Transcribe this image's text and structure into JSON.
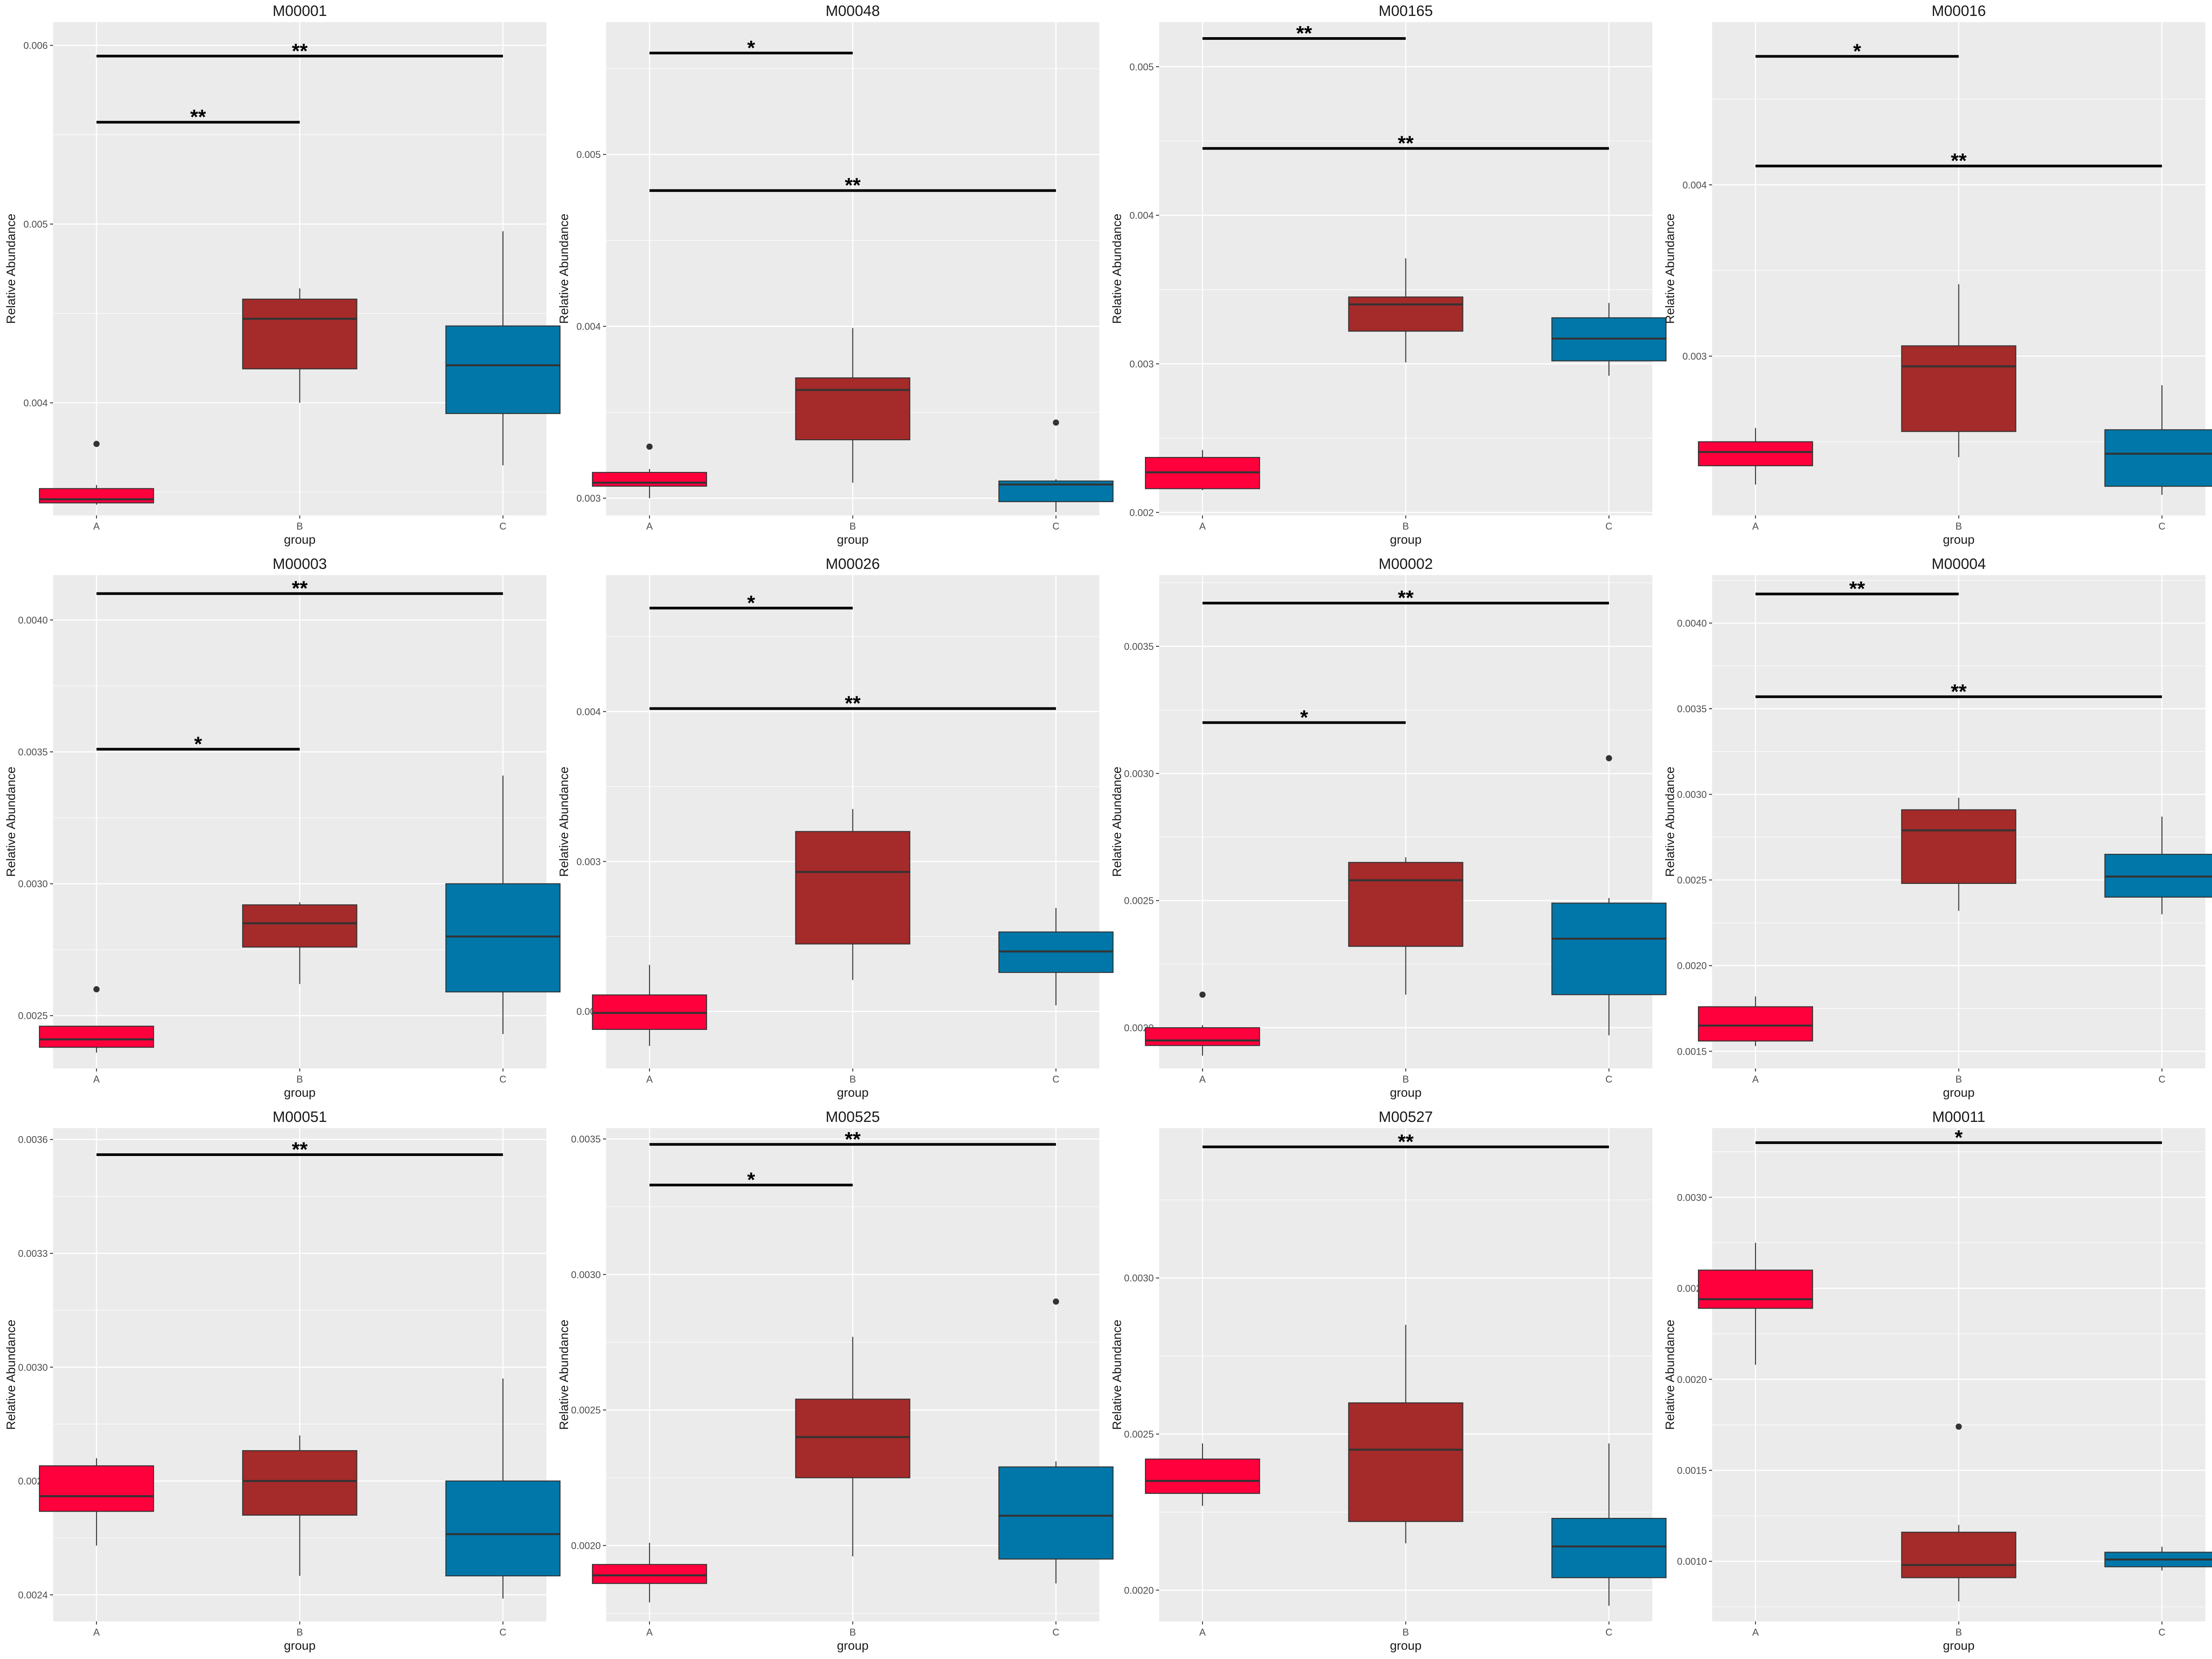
{
  "colors": {
    "A": "#ff003c",
    "B": "#a52a2a",
    "C": "#0077a8",
    "panel": "#ebebeb",
    "grid": "#ffffff",
    "outline": "#333333"
  },
  "chart_data": [
    {
      "type": "box",
      "title": "M00001",
      "xlabel": "group",
      "ylabel": "Relative Abundance",
      "categories": [
        "A",
        "B",
        "C"
      ],
      "ylim": [
        0.00337,
        0.00613
      ],
      "yticks": [
        "0.004",
        "0.005",
        "0.006"
      ],
      "boxes": [
        {
          "group": "A",
          "min": 0.00343,
          "q1": 0.00344,
          "median": 0.00346,
          "q3": 0.00352,
          "max": 0.00354,
          "outliers": [
            0.00377
          ]
        },
        {
          "group": "B",
          "min": 0.004,
          "q1": 0.00419,
          "median": 0.00447,
          "q3": 0.00458,
          "max": 0.00464,
          "outliers": []
        },
        {
          "group": "C",
          "min": 0.00365,
          "q1": 0.00394,
          "median": 0.00421,
          "q3": 0.00443,
          "max": 0.00496,
          "outliers": []
        }
      ],
      "significance": [
        {
          "from": "A",
          "to": "B",
          "y": 0.00557,
          "label": "**"
        },
        {
          "from": "A",
          "to": "C",
          "y": 0.00594,
          "label": "**"
        }
      ]
    },
    {
      "type": "box",
      "title": "M00048",
      "xlabel": "group",
      "ylabel": "Relative Abundance",
      "categories": [
        "A",
        "B",
        "C"
      ],
      "ylim": [
        0.0029,
        0.00577
      ],
      "yticks": [
        "0.003",
        "0.004",
        "0.005"
      ],
      "boxes": [
        {
          "group": "A",
          "min": 0.003,
          "q1": 0.00307,
          "median": 0.00309,
          "q3": 0.00315,
          "max": 0.00317,
          "outliers": [
            0.0033
          ]
        },
        {
          "group": "B",
          "min": 0.00309,
          "q1": 0.00334,
          "median": 0.00363,
          "q3": 0.0037,
          "max": 0.00399,
          "outliers": []
        },
        {
          "group": "C",
          "min": 0.00292,
          "q1": 0.00298,
          "median": 0.00308,
          "q3": 0.0031,
          "max": 0.00311,
          "outliers": [
            0.00344
          ]
        }
      ],
      "significance": [
        {
          "from": "A",
          "to": "B",
          "y": 0.00559,
          "label": "*"
        },
        {
          "from": "A",
          "to": "C",
          "y": 0.00479,
          "label": "**"
        }
      ]
    },
    {
      "type": "box",
      "title": "M00165",
      "xlabel": "group",
      "ylabel": "Relative Abundance",
      "categories": [
        "A",
        "B",
        "C"
      ],
      "ylim": [
        0.00198,
        0.0053
      ],
      "yticks": [
        "0.002",
        "0.003",
        "0.004",
        "0.005"
      ],
      "boxes": [
        {
          "group": "A",
          "min": 0.00215,
          "q1": 0.00216,
          "median": 0.00227,
          "q3": 0.00237,
          "max": 0.00242,
          "outliers": []
        },
        {
          "group": "B",
          "min": 0.00301,
          "q1": 0.00322,
          "median": 0.0034,
          "q3": 0.00345,
          "max": 0.00371,
          "outliers": []
        },
        {
          "group": "C",
          "min": 0.00292,
          "q1": 0.00302,
          "median": 0.00317,
          "q3": 0.00331,
          "max": 0.00341,
          "outliers": []
        }
      ],
      "significance": [
        {
          "from": "A",
          "to": "B",
          "y": 0.00519,
          "label": "**"
        },
        {
          "from": "A",
          "to": "C",
          "y": 0.00445,
          "label": "**"
        }
      ]
    },
    {
      "type": "box",
      "title": "M00016",
      "xlabel": "group",
      "ylabel": "Relative Abundance",
      "categories": [
        "A",
        "B",
        "C"
      ],
      "ylim": [
        0.00207,
        0.00495
      ],
      "yticks": [
        "0.003",
        "0.004"
      ],
      "boxes": [
        {
          "group": "A",
          "min": 0.00225,
          "q1": 0.00236,
          "median": 0.00244,
          "q3": 0.0025,
          "max": 0.00258,
          "outliers": []
        },
        {
          "group": "B",
          "min": 0.00241,
          "q1": 0.00256,
          "median": 0.00294,
          "q3": 0.00306,
          "max": 0.00342,
          "outliers": []
        },
        {
          "group": "C",
          "min": 0.00219,
          "q1": 0.00224,
          "median": 0.00243,
          "q3": 0.00257,
          "max": 0.00283,
          "outliers": []
        }
      ],
      "significance": [
        {
          "from": "A",
          "to": "B",
          "y": 0.00475,
          "label": "*"
        },
        {
          "from": "A",
          "to": "C",
          "y": 0.00411,
          "label": "**"
        }
      ]
    },
    {
      "type": "box",
      "title": "M00003",
      "xlabel": "group",
      "ylabel": "Relative Abundance",
      "categories": [
        "A",
        "B",
        "C"
      ],
      "ylim": [
        0.0023,
        0.00417
      ],
      "yticks": [
        "0.0025",
        "0.0030",
        "0.0035",
        "0.0040"
      ],
      "boxes": [
        {
          "group": "A",
          "min": 0.00236,
          "q1": 0.00238,
          "median": 0.00241,
          "q3": 0.00246,
          "max": 0.00246,
          "outliers": [
            0.0026
          ]
        },
        {
          "group": "B",
          "min": 0.00262,
          "q1": 0.00276,
          "median": 0.00285,
          "q3": 0.00292,
          "max": 0.00293,
          "outliers": []
        },
        {
          "group": "C",
          "min": 0.00243,
          "q1": 0.00259,
          "median": 0.0028,
          "q3": 0.003,
          "max": 0.00341,
          "outliers": []
        }
      ],
      "significance": [
        {
          "from": "A",
          "to": "B",
          "y": 0.00351,
          "label": "*"
        },
        {
          "from": "A",
          "to": "C",
          "y": 0.0041,
          "label": "**"
        }
      ]
    },
    {
      "type": "box",
      "title": "M00026",
      "xlabel": "group",
      "ylabel": "Relative Abundance",
      "categories": [
        "A",
        "B",
        "C"
      ],
      "ylim": [
        0.00162,
        0.00491
      ],
      "yticks": [
        "0.002",
        "0.003",
        "0.004"
      ],
      "boxes": [
        {
          "group": "A",
          "min": 0.00177,
          "q1": 0.00188,
          "median": 0.00199,
          "q3": 0.00211,
          "max": 0.00231,
          "outliers": []
        },
        {
          "group": "B",
          "min": 0.00221,
          "q1": 0.00245,
          "median": 0.00293,
          "q3": 0.0032,
          "max": 0.00335,
          "outliers": []
        },
        {
          "group": "C",
          "min": 0.00204,
          "q1": 0.00226,
          "median": 0.0024,
          "q3": 0.00253,
          "max": 0.00269,
          "outliers": []
        }
      ],
      "significance": [
        {
          "from": "A",
          "to": "B",
          "y": 0.00469,
          "label": "*"
        },
        {
          "from": "A",
          "to": "C",
          "y": 0.00402,
          "label": "**"
        }
      ]
    },
    {
      "type": "box",
      "title": "M00002",
      "xlabel": "group",
      "ylabel": "Relative Abundance",
      "categories": [
        "A",
        "B",
        "C"
      ],
      "ylim": [
        0.00184,
        0.00378
      ],
      "yticks": [
        "0.0020",
        "0.0025",
        "0.0030",
        "0.0035"
      ],
      "boxes": [
        {
          "group": "A",
          "min": 0.00189,
          "q1": 0.00193,
          "median": 0.00195,
          "q3": 0.002,
          "max": 0.00201,
          "outliers": [
            0.00213
          ]
        },
        {
          "group": "B",
          "min": 0.00213,
          "q1": 0.00232,
          "median": 0.00258,
          "q3": 0.00265,
          "max": 0.00267,
          "outliers": []
        },
        {
          "group": "C",
          "min": 0.00197,
          "q1": 0.00213,
          "median": 0.00235,
          "q3": 0.00249,
          "max": 0.00251,
          "outliers": [
            0.00306
          ]
        }
      ],
      "significance": [
        {
          "from": "A",
          "to": "B",
          "y": 0.0032,
          "label": "*"
        },
        {
          "from": "A",
          "to": "C",
          "y": 0.00367,
          "label": "**"
        }
      ]
    },
    {
      "type": "box",
      "title": "M00004",
      "xlabel": "group",
      "ylabel": "Relative Abundance",
      "categories": [
        "A",
        "B",
        "C"
      ],
      "ylim": [
        0.0014,
        0.00428
      ],
      "yticks": [
        "0.0015",
        "0.0020",
        "0.0025",
        "0.0030",
        "0.0035",
        "0.0040"
      ],
      "boxes": [
        {
          "group": "A",
          "min": 0.00153,
          "q1": 0.00156,
          "median": 0.00165,
          "q3": 0.00176,
          "max": 0.00182,
          "outliers": []
        },
        {
          "group": "B",
          "min": 0.00232,
          "q1": 0.00248,
          "median": 0.00279,
          "q3": 0.00291,
          "max": 0.00298,
          "outliers": []
        },
        {
          "group": "C",
          "min": 0.0023,
          "q1": 0.0024,
          "median": 0.00252,
          "q3": 0.00265,
          "max": 0.00287,
          "outliers": []
        }
      ],
      "significance": [
        {
          "from": "A",
          "to": "B",
          "y": 0.00417,
          "label": "**"
        },
        {
          "from": "A",
          "to": "C",
          "y": 0.00357,
          "label": "**"
        }
      ]
    },
    {
      "type": "box",
      "title": "M00051",
      "xlabel": "group",
      "ylabel": "Relative Abundance",
      "categories": [
        "A",
        "B",
        "C"
      ],
      "ylim": [
        0.00233,
        0.00363
      ],
      "yticks": [
        "0.0024",
        "0.0027",
        "0.0030",
        "0.0033",
        "0.0036"
      ],
      "boxes": [
        {
          "group": "A",
          "min": 0.00253,
          "q1": 0.00262,
          "median": 0.00266,
          "q3": 0.00274,
          "max": 0.00276,
          "outliers": []
        },
        {
          "group": "B",
          "min": 0.00245,
          "q1": 0.00261,
          "median": 0.0027,
          "q3": 0.00278,
          "max": 0.00282,
          "outliers": []
        },
        {
          "group": "C",
          "min": 0.00239,
          "q1": 0.00245,
          "median": 0.00256,
          "q3": 0.0027,
          "max": 0.00297,
          "outliers": []
        }
      ],
      "significance": [
        {
          "from": "A",
          "to": "C",
          "y": 0.00356,
          "label": "**"
        }
      ]
    },
    {
      "type": "box",
      "title": "M00525",
      "xlabel": "group",
      "ylabel": "Relative Abundance",
      "categories": [
        "A",
        "B",
        "C"
      ],
      "ylim": [
        0.00172,
        0.00354
      ],
      "yticks": [
        "0.0020",
        "0.0025",
        "0.0030",
        "0.0035"
      ],
      "boxes": [
        {
          "group": "A",
          "min": 0.00179,
          "q1": 0.00186,
          "median": 0.00189,
          "q3": 0.00193,
          "max": 0.00201,
          "outliers": []
        },
        {
          "group": "B",
          "min": 0.00196,
          "q1": 0.00225,
          "median": 0.0024,
          "q3": 0.00254,
          "max": 0.00277,
          "outliers": []
        },
        {
          "group": "C",
          "min": 0.00186,
          "q1": 0.00195,
          "median": 0.00211,
          "q3": 0.00229,
          "max": 0.00231,
          "outliers": [
            0.0029
          ]
        }
      ],
      "significance": [
        {
          "from": "A",
          "to": "B",
          "y": 0.00333,
          "label": "*"
        },
        {
          "from": "A",
          "to": "C",
          "y": 0.00348,
          "label": "**"
        }
      ]
    },
    {
      "type": "box",
      "title": "M00527",
      "xlabel": "group",
      "ylabel": "Relative Abundance",
      "categories": [
        "A",
        "B",
        "C"
      ],
      "ylim": [
        0.0019,
        0.00348
      ],
      "yticks": [
        "0.0020",
        "0.0025",
        "0.0030"
      ],
      "boxes": [
        {
          "group": "A",
          "min": 0.00227,
          "q1": 0.00231,
          "median": 0.00235,
          "q3": 0.00242,
          "max": 0.00247,
          "outliers": []
        },
        {
          "group": "B",
          "min": 0.00215,
          "q1": 0.00222,
          "median": 0.00245,
          "q3": 0.0026,
          "max": 0.00285,
          "outliers": []
        },
        {
          "group": "C",
          "min": 0.00195,
          "q1": 0.00204,
          "median": 0.00214,
          "q3": 0.00223,
          "max": 0.00247,
          "outliers": []
        }
      ],
      "significance": [
        {
          "from": "A",
          "to": "C",
          "y": 0.00342,
          "label": "**"
        }
      ]
    },
    {
      "type": "box",
      "title": "M00011",
      "xlabel": "group",
      "ylabel": "Relative Abundance",
      "categories": [
        "A",
        "B",
        "C"
      ],
      "ylim": [
        0.00067,
        0.00338
      ],
      "yticks": [
        "0.0010",
        "0.0015",
        "0.0020",
        "0.0025",
        "0.0030"
      ],
      "boxes": [
        {
          "group": "A",
          "min": 0.00208,
          "q1": 0.00239,
          "median": 0.00244,
          "q3": 0.0026,
          "max": 0.00275,
          "outliers": []
        },
        {
          "group": "B",
          "min": 0.00078,
          "q1": 0.00091,
          "median": 0.00098,
          "q3": 0.00116,
          "max": 0.0012,
          "outliers": [
            0.00174
          ]
        },
        {
          "group": "C",
          "min": 0.00095,
          "q1": 0.00097,
          "median": 0.00101,
          "q3": 0.00105,
          "max": 0.00108,
          "outliers": []
        }
      ],
      "significance": [
        {
          "from": "A",
          "to": "C",
          "y": 0.0033,
          "label": "*"
        }
      ]
    }
  ]
}
